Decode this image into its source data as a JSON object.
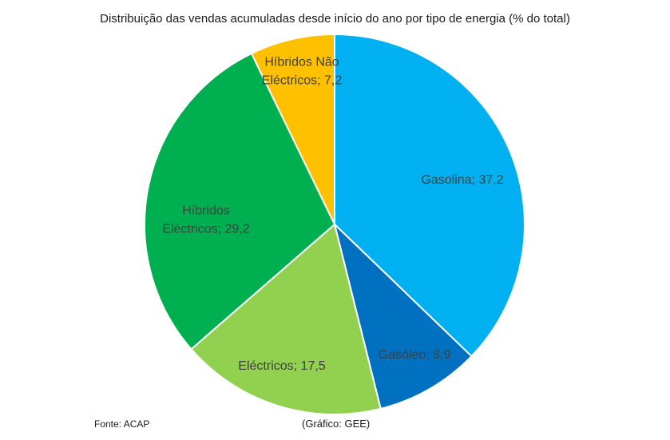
{
  "chart_data": {
    "type": "pie",
    "title": "Distribuição das vendas acumuladas desde início do ano por tipo de energia (% do total)",
    "slices": [
      {
        "name": "Gasolina",
        "value": 37.2,
        "label": [
          "Gasolina; 37,2"
        ],
        "color": "#00B0F0"
      },
      {
        "name": "Gasóleo",
        "value": 8.9,
        "label": [
          "Gasóleo; 8,9"
        ],
        "color": "#0070C0"
      },
      {
        "name": "Eléctricos",
        "value": 17.5,
        "label": [
          "Eléctricos; 17,5"
        ],
        "color": "#92D050"
      },
      {
        "name": "Híbridos Eléctricos",
        "value": 29.2,
        "label": [
          "Híbridos",
          "Eléctricos; 29,2"
        ],
        "color": "#00B050"
      },
      {
        "name": "Híbridos Não Eléctricos",
        "value": 7.2,
        "label": [
          "Híbridos Não",
          "Eléctricos; 7,2"
        ],
        "color": "#FFC000"
      }
    ],
    "start_angle": "12 o'clock",
    "direction": "clockwise",
    "legend": "none"
  },
  "notes": {
    "source": "Fonte: ACAP",
    "credit": "(Gráfico: GEE)"
  }
}
